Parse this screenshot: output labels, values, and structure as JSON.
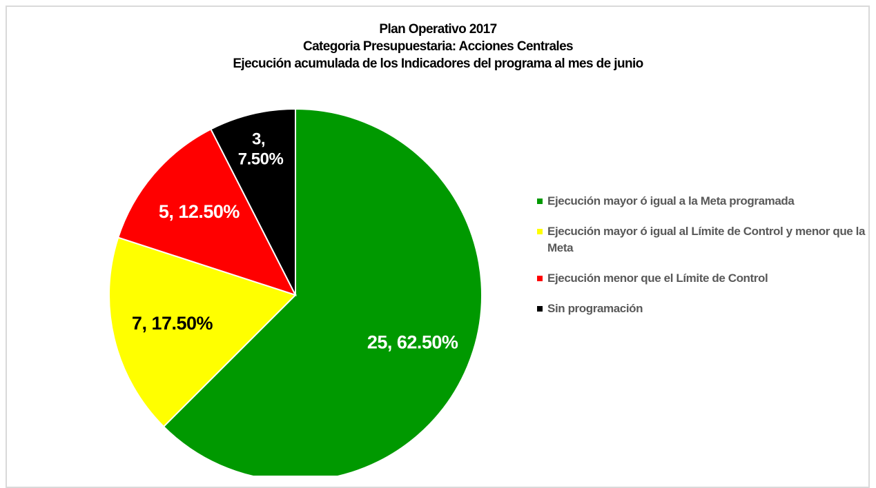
{
  "chart_data": {
    "type": "pie",
    "title": "Plan Operativo 2017",
    "subtitle": [
      "Categoria Presupuestaria: Acciones Centrales",
      "Ejecución acumulada de los Indicadores del programa al mes de junio"
    ],
    "categories": [
      "Ejecución mayor ó igual a la Meta programada",
      "Ejecución mayor ó igual al Límite de Control y menor que la Meta",
      "Ejecución menor que el Límite de Control",
      "Sin programación"
    ],
    "values": [
      25,
      7,
      5,
      3
    ],
    "value_labels": [
      "25, 62.50%",
      "7, 17.50%",
      "5, 12.50%",
      "3, 7.50%"
    ],
    "colors": [
      "#009900",
      "#ffff00",
      "#ff0000",
      "#000000"
    ],
    "label_colors": [
      "#ffffff",
      "#000000",
      "#ffffff",
      "#ffffff"
    ],
    "legend": "right"
  }
}
